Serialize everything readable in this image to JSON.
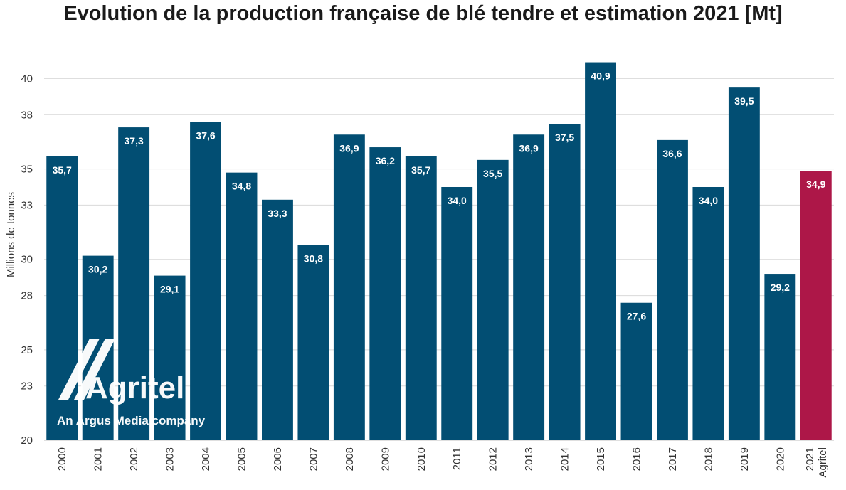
{
  "chart_data": {
    "type": "bar",
    "title": "Evolution de la production française de blé tendre et estimation 2021 [Mt]",
    "ylabel": "Millions de tonnes",
    "xlabel": "",
    "ylim": [
      20,
      41
    ],
    "yticks": [
      20,
      23,
      25,
      28,
      30,
      33,
      35,
      38,
      40
    ],
    "grid": true,
    "categories": [
      "2000",
      "2001",
      "2002",
      "2003",
      "2004",
      "2005",
      "2006",
      "2007",
      "2008",
      "2009",
      "2010",
      "2011",
      "2012",
      "2013",
      "2014",
      "2015",
      "2016",
      "2017",
      "2018",
      "2019",
      "2020",
      "2021\nAgritel"
    ],
    "values": [
      35.7,
      30.2,
      37.3,
      29.1,
      37.6,
      34.8,
      33.3,
      30.8,
      36.9,
      36.2,
      35.7,
      34.0,
      35.5,
      36.9,
      37.5,
      40.9,
      27.6,
      36.6,
      34.0,
      39.5,
      29.2,
      34.9
    ],
    "value_labels": [
      "35,7",
      "30,2",
      "37,3",
      "29,1",
      "37,6",
      "34,8",
      "33,3",
      "30,8",
      "36,9",
      "36,2",
      "35,7",
      "34,0",
      "35,5",
      "36,9",
      "37,5",
      "40,9",
      "27,6",
      "36,6",
      "34,0",
      "39,5",
      "29,2",
      "34,9"
    ],
    "colors": {
      "historical": "#024e73",
      "estimate": "#ad1748",
      "grid": "#d9d9d9"
    },
    "estimate_index": 21
  },
  "logo": {
    "name": "Agritel",
    "tagline": "An Argus Media company",
    "icon": "agritel-logo-icon"
  }
}
